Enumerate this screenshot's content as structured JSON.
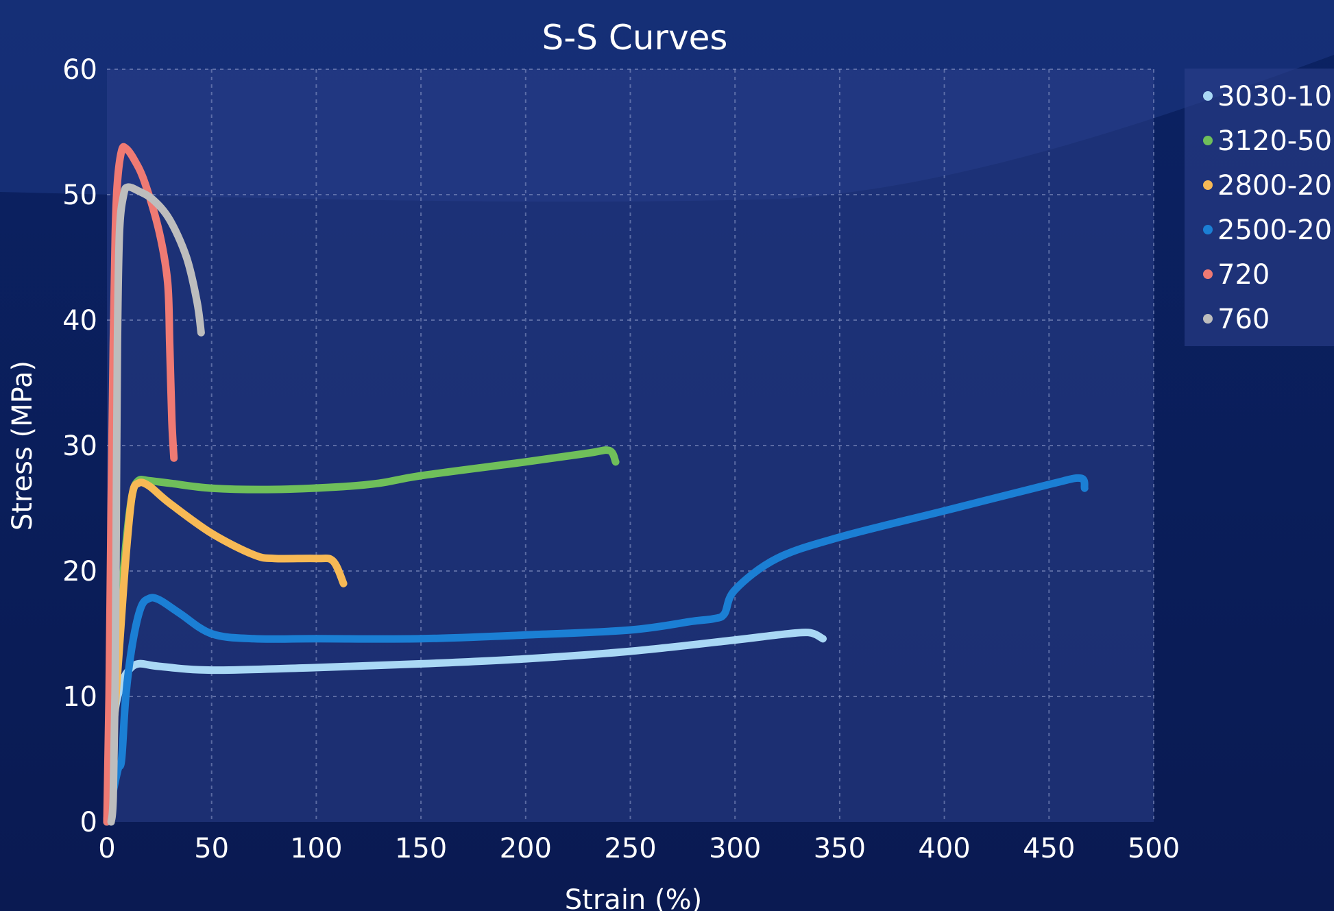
{
  "chart_data": {
    "type": "line",
    "title": "S-S Curves",
    "xlabel": "Strain (%)",
    "ylabel": "Stress (MPa)",
    "xlim": [
      0,
      500
    ],
    "ylim": [
      0,
      60
    ],
    "x_ticks": [
      0,
      50,
      100,
      150,
      200,
      250,
      300,
      350,
      400,
      450,
      500
    ],
    "y_ticks": [
      0,
      10,
      20,
      30,
      40,
      50,
      60
    ],
    "grid": true,
    "legend_position": "right",
    "series": [
      {
        "name": "3030-10",
        "color": "#a9d8f5",
        "points": [
          [
            0,
            0
          ],
          [
            2,
            5
          ],
          [
            4,
            9
          ],
          [
            7,
            11
          ],
          [
            10,
            12
          ],
          [
            15,
            12.6
          ],
          [
            25,
            12.4
          ],
          [
            50,
            12.1
          ],
          [
            100,
            12.3
          ],
          [
            150,
            12.6
          ],
          [
            200,
            13
          ],
          [
            250,
            13.6
          ],
          [
            300,
            14.5
          ],
          [
            320,
            14.9
          ],
          [
            335,
            15.1
          ],
          [
            342,
            14.6
          ]
        ]
      },
      {
        "name": "3120-50",
        "color": "#6fbf5a",
        "points": [
          [
            0,
            0
          ],
          [
            3,
            8
          ],
          [
            6,
            16
          ],
          [
            9,
            22
          ],
          [
            12,
            26
          ],
          [
            15,
            27.2
          ],
          [
            20,
            27.2
          ],
          [
            30,
            27
          ],
          [
            50,
            26.6
          ],
          [
            80,
            26.5
          ],
          [
            110,
            26.7
          ],
          [
            130,
            27
          ],
          [
            150,
            27.6
          ],
          [
            200,
            28.7
          ],
          [
            230,
            29.4
          ],
          [
            240,
            29.6
          ],
          [
            243,
            28.7
          ]
        ]
      },
      {
        "name": "2800-20",
        "color": "#f7b955",
        "points": [
          [
            0,
            0
          ],
          [
            3,
            7
          ],
          [
            6,
            14
          ],
          [
            9,
            21
          ],
          [
            12,
            26
          ],
          [
            15,
            27
          ],
          [
            20,
            26.8
          ],
          [
            30,
            25.4
          ],
          [
            50,
            23
          ],
          [
            70,
            21.3
          ],
          [
            80,
            21
          ],
          [
            100,
            21
          ],
          [
            108,
            20.8
          ],
          [
            113,
            19
          ]
        ]
      },
      {
        "name": "2500-20",
        "color": "#1b7fd4",
        "points": [
          [
            0,
            0
          ],
          [
            5,
            4
          ],
          [
            7,
            5
          ],
          [
            9,
            10
          ],
          [
            12,
            14
          ],
          [
            16,
            17
          ],
          [
            20,
            17.8
          ],
          [
            25,
            17.7
          ],
          [
            35,
            16.6
          ],
          [
            50,
            15
          ],
          [
            70,
            14.6
          ],
          [
            100,
            14.6
          ],
          [
            150,
            14.6
          ],
          [
            200,
            14.9
          ],
          [
            250,
            15.3
          ],
          [
            280,
            16
          ],
          [
            290,
            16.2
          ],
          [
            295,
            16.6
          ],
          [
            300,
            18.5
          ],
          [
            320,
            21
          ],
          [
            350,
            22.7
          ],
          [
            400,
            24.8
          ],
          [
            450,
            26.9
          ],
          [
            465,
            27.4
          ],
          [
            467,
            26.6
          ]
        ]
      },
      {
        "name": "720",
        "color": "#ef7a73",
        "points": [
          [
            0,
            0
          ],
          [
            1,
            10
          ],
          [
            2,
            25
          ],
          [
            3,
            38
          ],
          [
            4,
            47
          ],
          [
            5,
            51
          ],
          [
            7,
            53.5
          ],
          [
            9,
            53.7
          ],
          [
            13,
            52.8
          ],
          [
            18,
            51
          ],
          [
            25,
            47
          ],
          [
            29,
            43
          ],
          [
            30,
            38
          ],
          [
            31,
            32
          ],
          [
            32,
            29
          ]
        ]
      },
      {
        "name": "760",
        "color": "#bdbdbd",
        "points": [
          [
            2,
            0
          ],
          [
            3,
            2
          ],
          [
            4,
            12
          ],
          [
            4.5,
            25
          ],
          [
            5,
            38
          ],
          [
            6,
            47
          ],
          [
            8,
            50
          ],
          [
            10,
            50.6
          ],
          [
            15,
            50.3
          ],
          [
            22,
            49.6
          ],
          [
            30,
            48
          ],
          [
            38,
            45
          ],
          [
            43,
            41.5
          ],
          [
            45,
            39
          ]
        ]
      }
    ]
  }
}
